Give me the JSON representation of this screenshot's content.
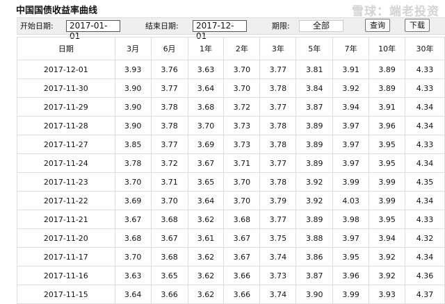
{
  "title": "中国国债收益率曲线",
  "toolbar": {
    "start_label": "开始日期:",
    "start_value": "2017-01-01",
    "end_label": "结束日期:",
    "end_value": "2017-12-01",
    "term_label": "期限:",
    "term_value": "全部",
    "query_label": "查询",
    "download_label": "下载"
  },
  "table": {
    "headers": [
      "日期",
      "3月",
      "6月",
      "1年",
      "2年",
      "3年",
      "5年",
      "7年",
      "10年",
      "30年"
    ],
    "rows": [
      [
        "2017-12-01",
        "3.93",
        "3.76",
        "3.63",
        "3.70",
        "3.77",
        "3.81",
        "3.91",
        "3.89",
        "4.33"
      ],
      [
        "2017-11-30",
        "3.90",
        "3.77",
        "3.64",
        "3.70",
        "3.78",
        "3.84",
        "3.92",
        "3.89",
        "4.33"
      ],
      [
        "2017-11-29",
        "3.90",
        "3.78",
        "3.68",
        "3.72",
        "3.77",
        "3.87",
        "3.94",
        "3.91",
        "4.34"
      ],
      [
        "2017-11-28",
        "3.90",
        "3.78",
        "3.70",
        "3.73",
        "3.78",
        "3.89",
        "3.97",
        "3.96",
        "4.34"
      ],
      [
        "2017-11-27",
        "3.85",
        "3.77",
        "3.69",
        "3.73",
        "3.78",
        "3.89",
        "3.97",
        "3.95",
        "4.33"
      ],
      [
        "2017-11-24",
        "3.78",
        "3.72",
        "3.67",
        "3.71",
        "3.77",
        "3.89",
        "3.97",
        "3.95",
        "4.34"
      ],
      [
        "2017-11-23",
        "3.70",
        "3.71",
        "3.65",
        "3.70",
        "3.78",
        "3.92",
        "3.99",
        "3.99",
        "4.35"
      ],
      [
        "2017-11-22",
        "3.69",
        "3.70",
        "3.64",
        "3.70",
        "3.79",
        "3.92",
        "4.03",
        "3.99",
        "4.34"
      ],
      [
        "2017-11-21",
        "3.67",
        "3.68",
        "3.62",
        "3.68",
        "3.77",
        "3.89",
        "3.98",
        "3.95",
        "4.33"
      ],
      [
        "2017-11-20",
        "3.68",
        "3.67",
        "3.61",
        "3.67",
        "3.75",
        "3.88",
        "3.97",
        "3.94",
        "4.32"
      ],
      [
        "2017-11-17",
        "3.70",
        "3.68",
        "3.62",
        "3.67",
        "3.74",
        "3.86",
        "3.95",
        "3.92",
        "4.34"
      ],
      [
        "2017-11-16",
        "3.63",
        "3.65",
        "3.62",
        "3.66",
        "3.73",
        "3.87",
        "3.96",
        "3.92",
        "4.36"
      ],
      [
        "2017-11-15",
        "3.64",
        "3.66",
        "3.62",
        "3.66",
        "3.74",
        "3.90",
        "3.99",
        "3.93",
        "4.37"
      ]
    ]
  },
  "watermark": "雪球：端老投资"
}
